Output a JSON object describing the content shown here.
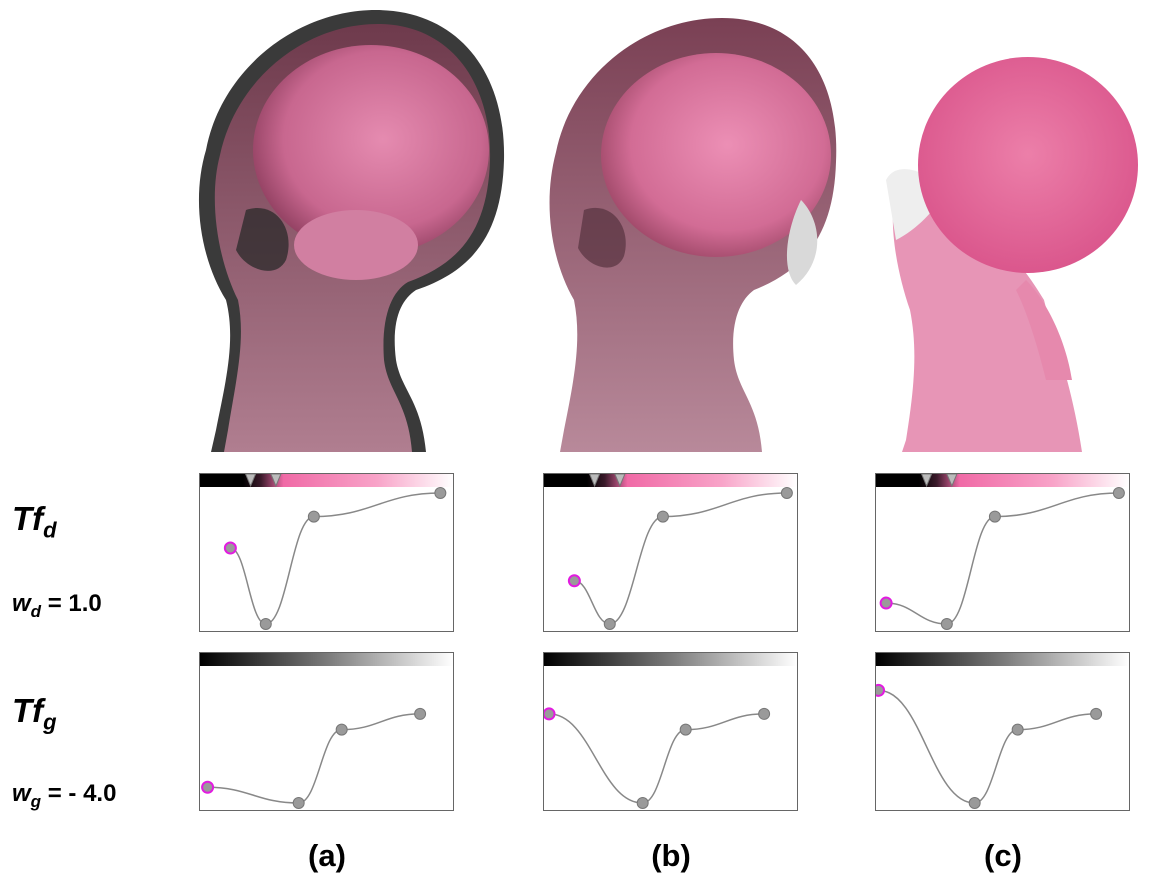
{
  "labels": {
    "tf_d": "Tf",
    "tf_d_sub": "d",
    "w_d_prefix": "w",
    "w_d_sub": "d",
    "w_d_value": " = 1.0",
    "tf_g": "Tf",
    "tf_g_sub": "g",
    "w_g_prefix": "w",
    "w_g_sub": "g",
    "w_g_value": " = - 4.0"
  },
  "captions": [
    "(a)",
    "(b)",
    "(c)"
  ],
  "colors": {
    "curve": "#888888",
    "node_fill": "#9a9a9a",
    "node_stroke": "#777777",
    "selected_node_stroke": "#e21be0",
    "pink": "#f06aa6",
    "tissue": "#c2426f"
  },
  "transfer_functions": [
    {
      "id": "a",
      "density_nodes": [
        [
          0.12,
          0.58
        ],
        [
          0.26,
          0.0
        ],
        [
          0.45,
          0.82
        ],
        [
          0.95,
          1.0
        ]
      ],
      "gradient_nodes": [
        [
          0.03,
          0.12
        ],
        [
          0.39,
          0.0
        ],
        [
          0.56,
          0.56
        ],
        [
          0.87,
          0.68
        ]
      ],
      "selected_node": 0
    },
    {
      "id": "b",
      "density_nodes": [
        [
          0.12,
          0.33
        ],
        [
          0.26,
          0.0
        ],
        [
          0.47,
          0.82
        ],
        [
          0.96,
          1.0
        ]
      ],
      "gradient_nodes": [
        [
          0.02,
          0.68
        ],
        [
          0.39,
          0.0
        ],
        [
          0.56,
          0.56
        ],
        [
          0.87,
          0.68
        ]
      ],
      "selected_node": 0
    },
    {
      "id": "c",
      "density_nodes": [
        [
          0.04,
          0.16
        ],
        [
          0.28,
          0.0
        ],
        [
          0.47,
          0.82
        ],
        [
          0.96,
          1.0
        ]
      ],
      "gradient_nodes": [
        [
          0.01,
          0.86
        ],
        [
          0.39,
          0.0
        ],
        [
          0.56,
          0.56
        ],
        [
          0.87,
          0.68
        ]
      ],
      "selected_node": 0
    }
  ]
}
